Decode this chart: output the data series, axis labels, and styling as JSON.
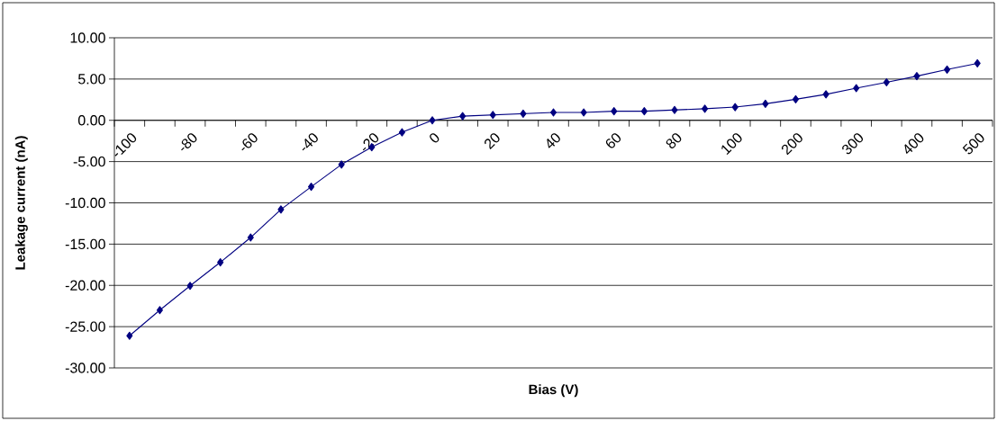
{
  "chart_data": {
    "type": "line",
    "xlabel": "Bias (V)",
    "ylabel": "Leakage current (nA)",
    "categories": [
      "-100",
      null,
      "-80",
      null,
      "-60",
      null,
      "-40",
      null,
      "-20",
      null,
      "0",
      null,
      "20",
      null,
      "40",
      null,
      "60",
      null,
      "80",
      null,
      "100",
      null,
      "200",
      null,
      "300",
      null,
      "400",
      null,
      "500"
    ],
    "series": [
      {
        "color": "#000080",
        "values": [
          -26.1,
          -23.0,
          -20.05,
          -17.2,
          -14.2,
          -10.8,
          -8.05,
          -5.35,
          -3.25,
          -1.45,
          0,
          0.5,
          0.65,
          0.8,
          0.95,
          0.95,
          1.1,
          1.1,
          1.25,
          1.4,
          1.6,
          2.0,
          2.55,
          3.15,
          3.9,
          4.6,
          5.35,
          6.15,
          6.9
        ]
      }
    ],
    "ylim": [
      -30,
      10
    ],
    "yticks": [
      {
        "value": -30,
        "label": "-30.00"
      },
      {
        "value": -25,
        "label": "-25.00"
      },
      {
        "value": -20,
        "label": "-20.00"
      },
      {
        "value": -15,
        "label": "-15.00"
      },
      {
        "value": -10,
        "label": "-10.00"
      },
      {
        "value": -5,
        "label": "-5.00"
      },
      {
        "value": 0,
        "label": "0.00"
      },
      {
        "value": 5,
        "label": "5.00"
      },
      {
        "value": 10,
        "label": "10.00"
      }
    ],
    "grid": "y",
    "marker": "diamond",
    "line_style": "solid"
  }
}
